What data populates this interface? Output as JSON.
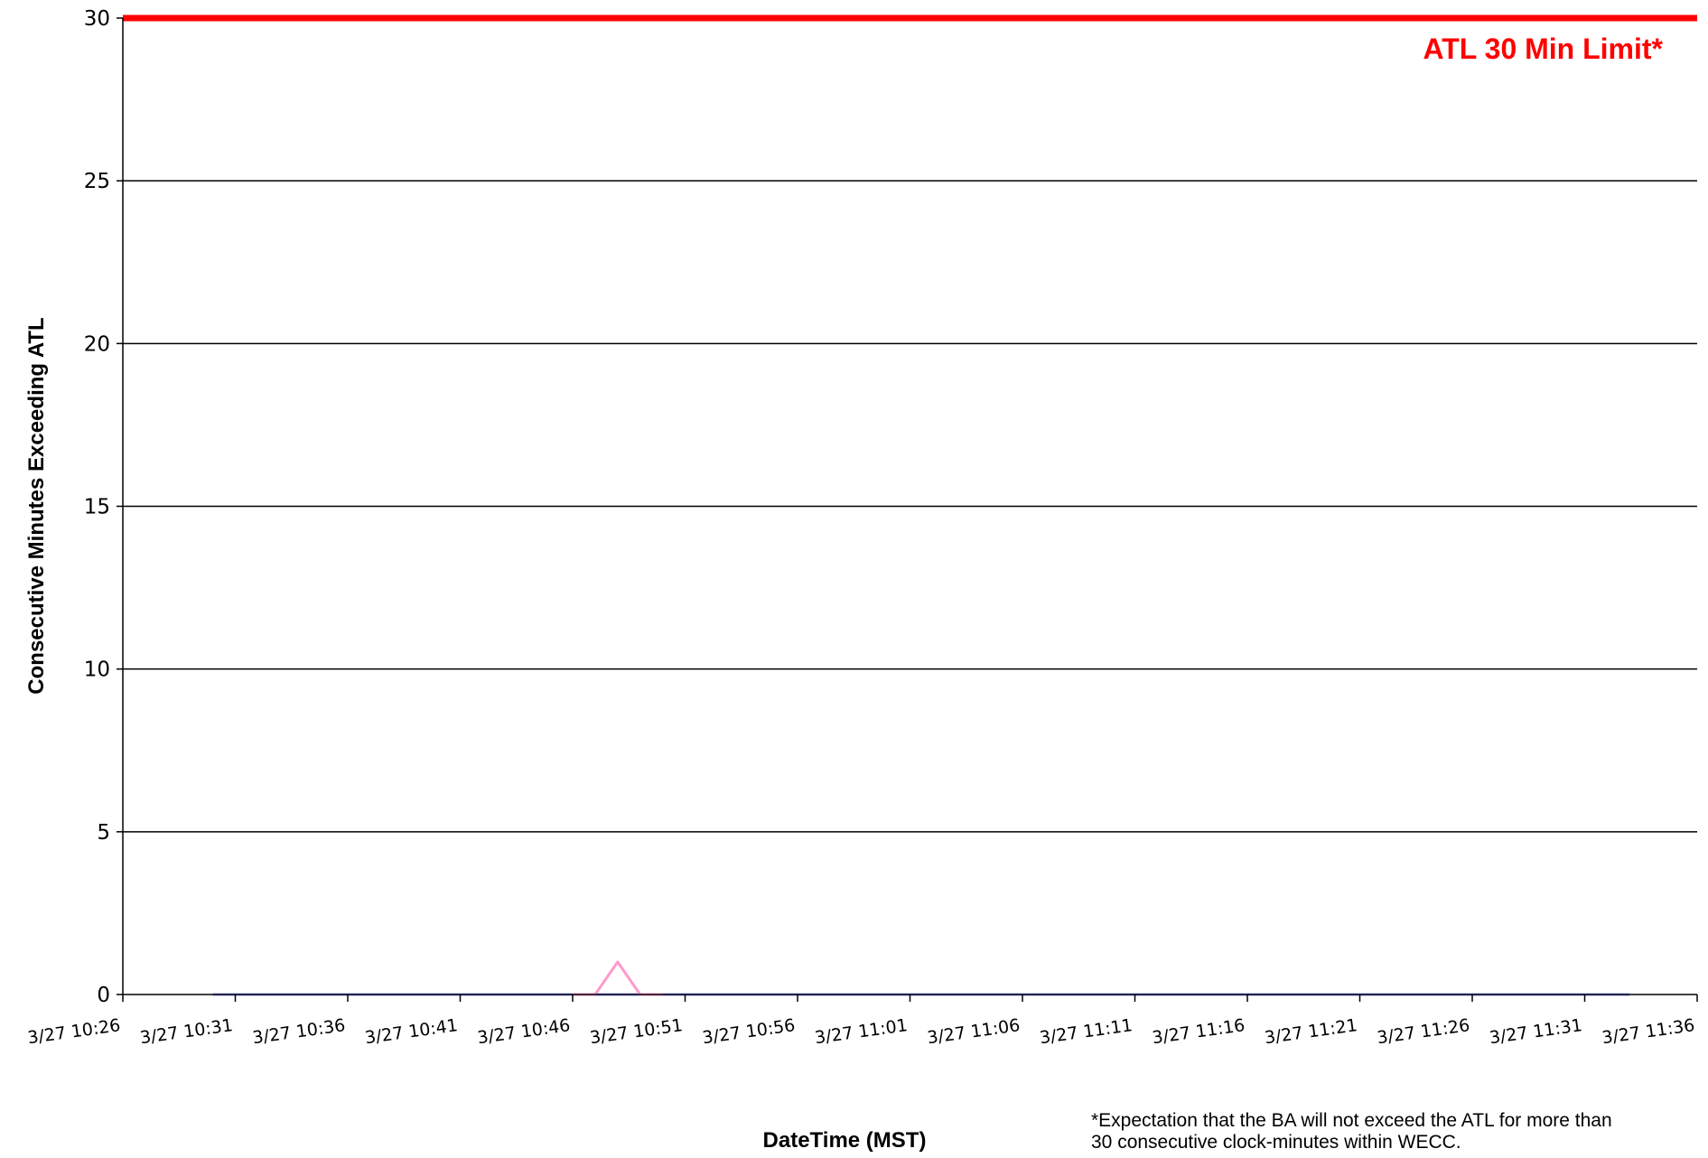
{
  "chart_data": {
    "type": "line",
    "xlabel": "DateTime (MST)",
    "ylabel": "Consecutive Minutes Exceeding ATL",
    "ylim": [
      0,
      30
    ],
    "yticks": [
      0,
      5,
      10,
      15,
      20,
      25,
      30
    ],
    "grid": true,
    "x_tick_labels": [
      "3/27 10:26",
      "3/27 10:31",
      "3/27 10:36",
      "3/27 10:41",
      "3/27 10:46",
      "3/27 10:51",
      "3/27 10:56",
      "3/27 11:01",
      "3/27 11:06",
      "3/27 11:11",
      "3/27 11:16",
      "3/27 11:21",
      "3/27 11:26",
      "3/27 11:31",
      "3/27 11:36"
    ],
    "xlim": [
      "3/27 10:26",
      "3/27 11:36"
    ],
    "series": [
      {
        "color": "#9999ff",
        "x": [
          "3/27 10:30",
          "3/27 11:33"
        ],
        "values": [
          0,
          0
        ]
      },
      {
        "color": "#ff99cc",
        "x": [
          "3/27 10:46",
          "3/27 10:47",
          "3/27 10:48",
          "3/27 10:49",
          "3/27 10:50"
        ],
        "values": [
          0,
          0,
          1,
          0,
          0
        ]
      }
    ],
    "limit_line": {
      "value": 30,
      "label": "ATL 30 Min Limit*",
      "color": "#ff0000"
    },
    "footnote": [
      "*Expectation that the BA will not exceed the ATL for more than",
      "30 consecutive clock-minutes within WECC."
    ]
  }
}
